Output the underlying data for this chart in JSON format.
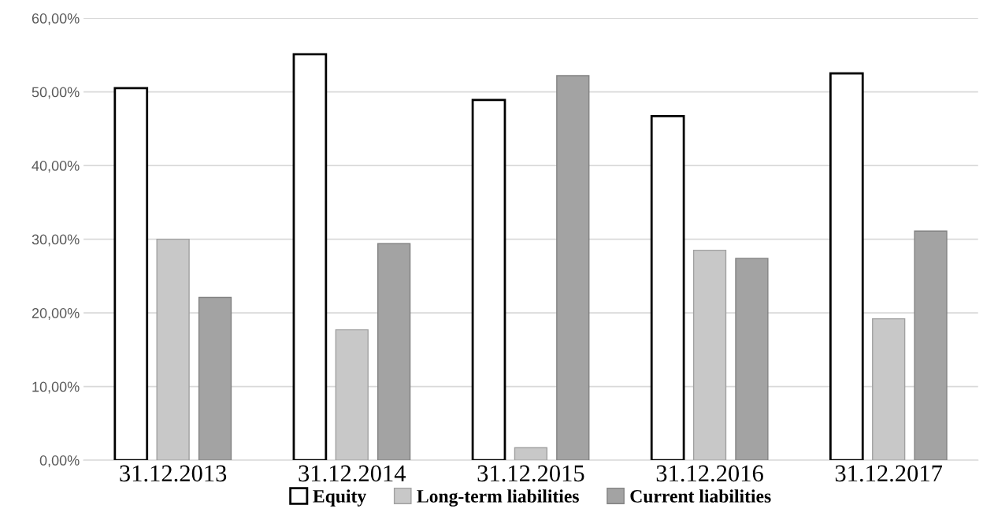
{
  "chart_data": {
    "type": "bar",
    "categories": [
      "31.12.2013",
      "31.12.2014",
      "31.12.2015",
      "31.12.2016",
      "31.12.2017"
    ],
    "series": [
      {
        "name": "Equity",
        "color": "#ffffff",
        "values": [
          50.5,
          55.1,
          48.9,
          46.7,
          52.5
        ]
      },
      {
        "name": "Long-term liabilities",
        "color": "#c8c8c8",
        "values": [
          30.0,
          17.7,
          1.7,
          28.5,
          19.2
        ]
      },
      {
        "name": "Current liabilities",
        "color": "#a3a3a3",
        "values": [
          22.1,
          29.4,
          52.2,
          27.4,
          31.1
        ]
      }
    ],
    "ylim": [
      0,
      60
    ],
    "yticks": [
      {
        "value": 0,
        "label": "0,00%"
      },
      {
        "value": 10,
        "label": "10,00%"
      },
      {
        "value": 20,
        "label": "20,00%"
      },
      {
        "value": 30,
        "label": "30,00%"
      },
      {
        "value": 40,
        "label": "40,00%"
      },
      {
        "value": 50,
        "label": "50,00%"
      },
      {
        "value": 60,
        "label": "60,00%"
      }
    ],
    "grid": "y",
    "legend": "bottom"
  }
}
